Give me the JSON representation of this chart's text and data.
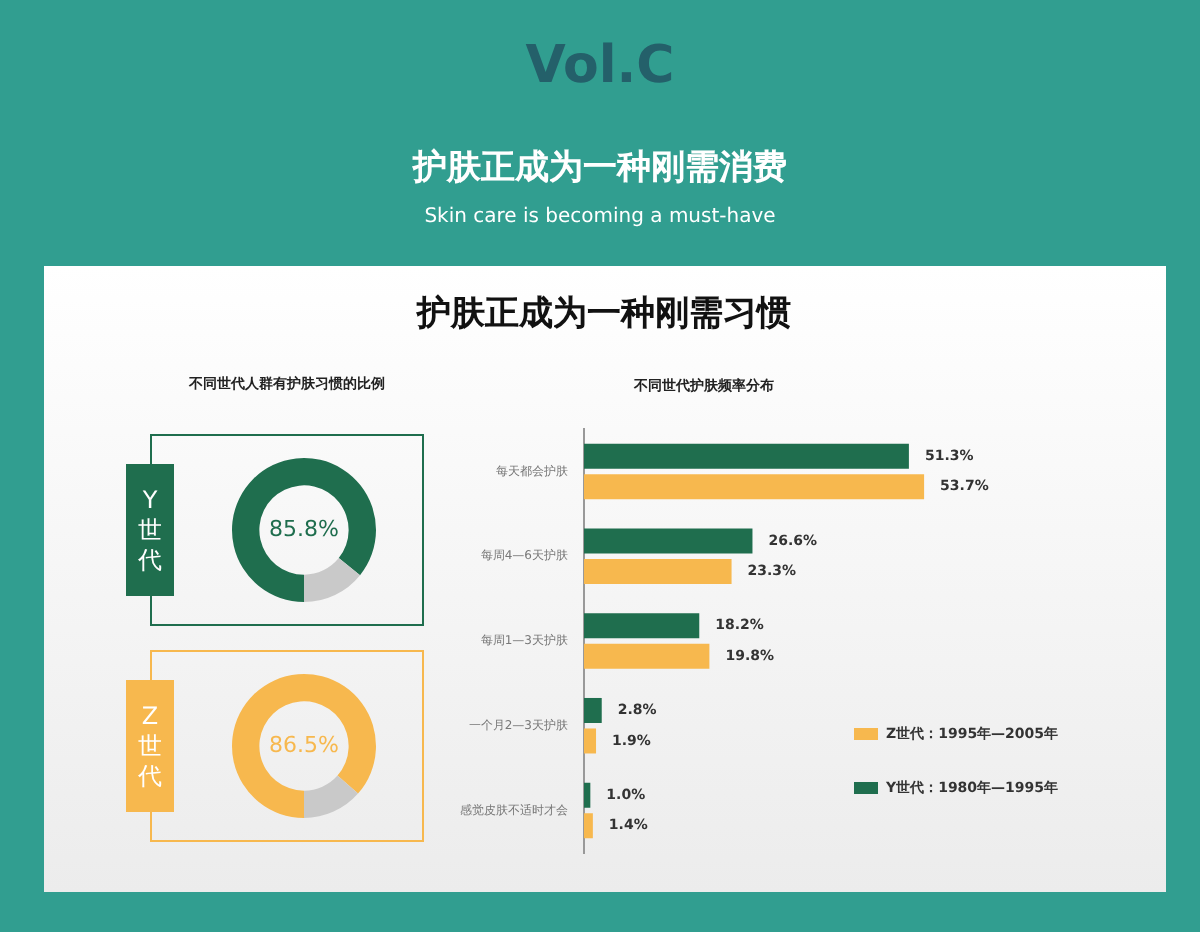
{
  "chart_data": [
    {
      "type": "other",
      "title": "护肤正成为一种刚需消费",
      "subtitle": "Skin care is becoming a must-have",
      "annotations": [
        "Vol.C",
        "护肤正成为一种刚需习惯"
      ]
    },
    {
      "type": "donut",
      "title": "不同世代人群有护肤习惯的比例",
      "ylabel": "Y世代",
      "categories": [
        null,
        null
      ],
      "values": [
        85.8,
        14.2
      ],
      "colors": [
        "#1f6e4e",
        "#c9c9c9"
      ],
      "value_labels": [
        "85.8%",
        null
      ]
    },
    {
      "type": "donut",
      "ylabel": "Z世代",
      "categories": [
        null,
        null
      ],
      "values": [
        86.5,
        13.5
      ],
      "colors": [
        "#f7b84e",
        "#c9c9c9"
      ],
      "value_labels": [
        "86.5%",
        null
      ]
    },
    {
      "type": "bar",
      "title": "不同世代护肤频率分布",
      "orientation": "horizontal",
      "categories": [
        "每天都会护肤",
        "每周4—6天护肤",
        "每周1—3天护肤",
        "一个月2—3天护肤",
        "感觉皮肤不适时才会"
      ],
      "tick_labels": "y",
      "grid": false,
      "legend": "bottom right",
      "series": [
        {
          "name": "Y世代：1980年—1995年",
          "color": "#1f6e4e",
          "values": [
            51.3,
            26.6,
            18.2,
            2.8,
            1.0
          ],
          "value_labels": [
            "51.3%",
            "26.6%",
            "18.2%",
            "2.8%",
            "1.0%"
          ]
        },
        {
          "name": "Z世代：1995年—2005年",
          "color": "#f7b84e",
          "values": [
            53.7,
            23.3,
            19.8,
            1.9,
            1.4
          ],
          "value_labels": [
            "53.7%",
            "23.3%",
            "19.8%",
            "1.9%",
            "1.4%"
          ]
        }
      ]
    }
  ]
}
